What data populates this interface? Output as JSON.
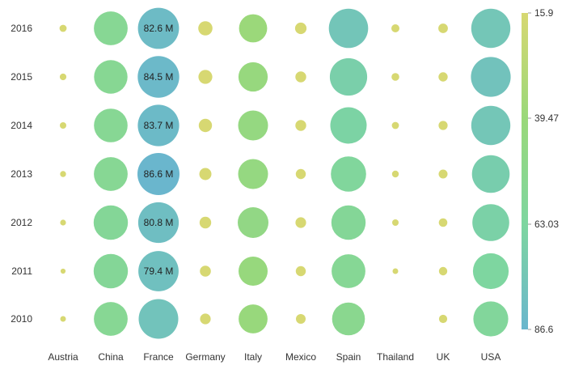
{
  "chart_data": {
    "type": "bubble-heatmap",
    "title": "",
    "xlabel": "",
    "ylabel": "",
    "categories": [
      "Austria",
      "China",
      "France",
      "Germany",
      "Italy",
      "Mexico",
      "Spain",
      "Thailand",
      "UK",
      "USA"
    ],
    "years": [
      "2016",
      "2015",
      "2014",
      "2013",
      "2012",
      "2011",
      "2010"
    ],
    "value_unit": "M",
    "color_range": [
      15.9,
      86.6
    ],
    "legend": {
      "position": "right",
      "ticks": [
        "15.9",
        "39.47",
        "63.03",
        "86.6"
      ],
      "colors": [
        "#d7d872",
        "#9ad87a",
        "#7ed6a0",
        "#6ab6cd"
      ]
    },
    "series": [
      {
        "name": "2016",
        "values": [
          2.5,
          55.7,
          82.6,
          10.0,
          39.0,
          6.4,
          75.6,
          3.2,
          4.5,
          75.0
        ]
      },
      {
        "name": "2015",
        "values": [
          2.2,
          55.0,
          84.5,
          9.5,
          42.0,
          5.8,
          68.2,
          2.9,
          4.2,
          77.5
        ]
      },
      {
        "name": "2014",
        "values": [
          2.0,
          55.6,
          83.7,
          8.7,
          44.0,
          5.7,
          65.0,
          2.5,
          4.0,
          75.0
        ]
      },
      {
        "name": "2013",
        "values": [
          1.8,
          55.7,
          86.6,
          7.3,
          43.7,
          4.9,
          60.7,
          2.3,
          3.9,
          69.8
        ]
      },
      {
        "name": "2012",
        "values": [
          1.7,
          57.7,
          80.8,
          6.6,
          46.4,
          5.6,
          57.7,
          2.1,
          3.6,
          66.7
        ]
      },
      {
        "name": "2011",
        "values": [
          1.2,
          57.6,
          79.4,
          6.0,
          41.6,
          5.0,
          56.2,
          1.6,
          3.5,
          62.7
        ]
      },
      {
        "name": "2010",
        "values": [
          1.6,
          55.7,
          77.1,
          5.6,
          40.9,
          4.6,
          52.7,
          0,
          3.3,
          60.0
        ]
      }
    ],
    "data_labels": {
      "column": "France",
      "labels": [
        "82.6 M",
        "84.5 M",
        "83.7 M",
        "86.6 M",
        "80.8 M",
        "79.4 M",
        ""
      ]
    }
  }
}
